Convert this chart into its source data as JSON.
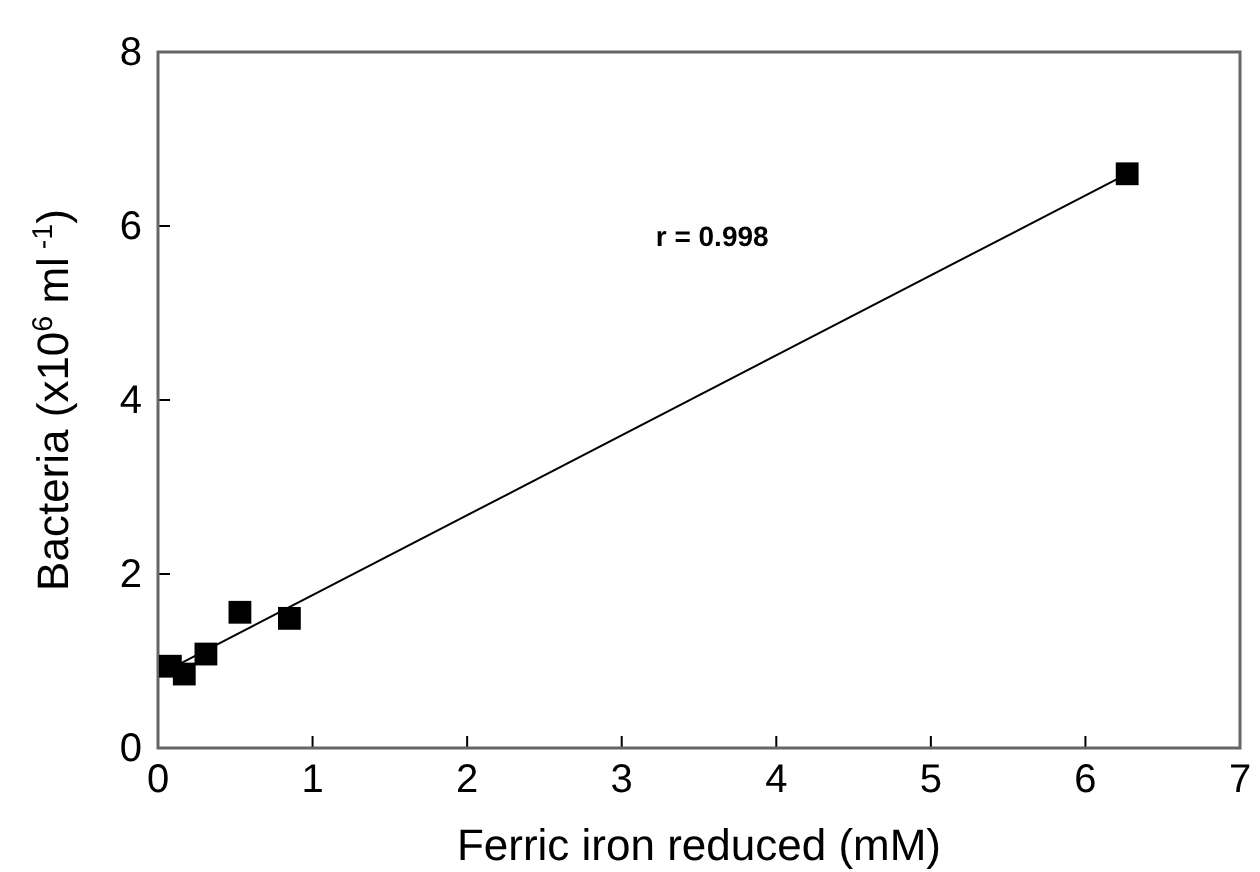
{
  "chart_data": {
    "type": "scatter",
    "xlabel": "Ferric iron reduced (mM)",
    "ylabel": "Bacteria (x10$^{6}$ ml$^{ -1}$)",
    "xlim": [
      0,
      7
    ],
    "xticks": [
      0,
      1,
      2,
      3,
      4,
      5,
      6,
      7
    ],
    "ylim": [
      0,
      8
    ],
    "yticks": [
      0,
      2,
      4,
      6,
      8
    ],
    "annotations": [
      "r = 0.998"
    ],
    "series": [
      {
        "marker": "square",
        "color": "#000000",
        "x": [
          0.08,
          0.17,
          0.31,
          0.53,
          0.85,
          6.27
        ],
        "values": [
          0.94,
          0.85,
          1.08,
          1.56,
          1.49,
          6.6
        ]
      },
      {
        "type": "line",
        "color": "#000000",
        "x": [
          0.1,
          6.27
        ],
        "values": [
          0.93,
          6.6
        ]
      }
    ]
  }
}
